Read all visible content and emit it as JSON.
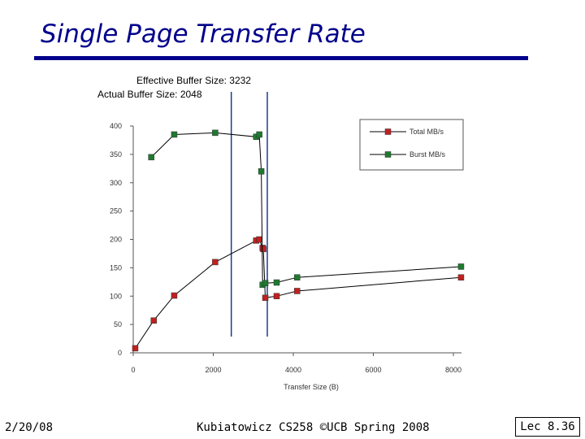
{
  "slide": {
    "title": "Single Page Transfer Rate",
    "date": "2/20/08",
    "course": "Kubiatowicz CS258 ©UCB Spring 2008",
    "page": "Lec 8.36"
  },
  "annotations": {
    "effective": "Effective Buffer Size: 3232",
    "actual": "Actual Buffer Size: 2048"
  },
  "colors": {
    "title": "#00008b",
    "total": "#c02020",
    "burst": "#1e7a2e",
    "marker_line": "#1f3a8a"
  },
  "chart_data": {
    "type": "line",
    "xlabel": "Transfer Size (B)",
    "ylabel": "",
    "xlim": [
      0,
      8000
    ],
    "ylim": [
      0,
      400
    ],
    "x_ticks": [
      0,
      2000,
      4000,
      6000,
      8000
    ],
    "y_ticks": [
      0,
      50,
      100,
      150,
      200,
      250,
      300,
      350,
      400
    ],
    "grid": false,
    "legend": "top-right",
    "vertical_markers": [
      2450,
      3350
    ],
    "series": [
      {
        "name": "Total MB/s",
        "x": [
          50,
          512,
          1024,
          2048,
          3072,
          3150,
          3232,
          3250,
          3300,
          3584,
          4096,
          8192
        ],
        "y": [
          8,
          57,
          101,
          160,
          198,
          200,
          185,
          183,
          97,
          100,
          109,
          133
        ]
      },
      {
        "name": "Burst MB/s",
        "x": [
          450,
          1024,
          2048,
          3072,
          3150,
          3200,
          3232,
          3300,
          3584,
          4096,
          8192
        ],
        "y": [
          345,
          385,
          388,
          381,
          385,
          320,
          120,
          123,
          124,
          133,
          152
        ]
      }
    ]
  }
}
